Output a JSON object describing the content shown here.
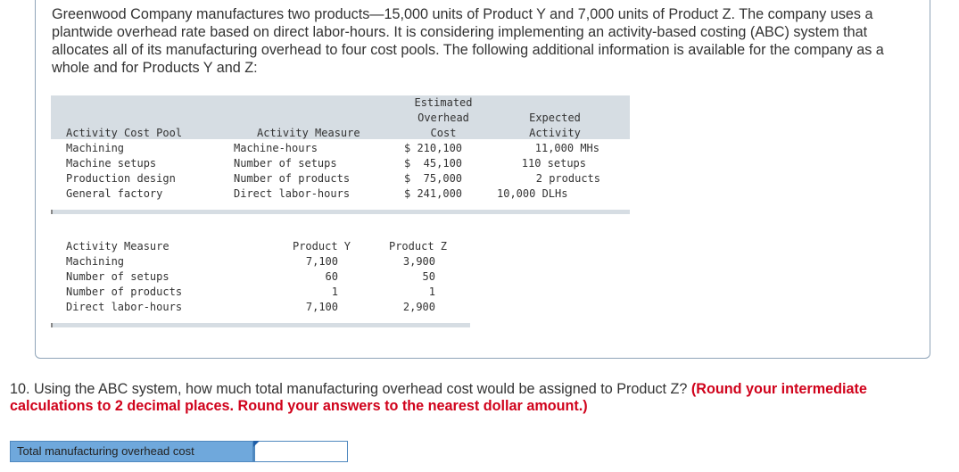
{
  "intro_text": "Greenwood Company manufactures two products—15,000 units of Product Y and 7,000 units of Product Z. The company uses a plantwide overhead rate based on direct labor-hours. It is considering implementing an activity-based costing (ABC) system that allocates all of its manufacturing overhead to four cost pools. The following additional information is available for the company as a whole and for Products Y and Z:",
  "table1": {
    "headers": {
      "pool": "Activity Cost Pool",
      "measure": "Activity Measure",
      "cost_line1": "Estimated",
      "cost_line2": "Overhead",
      "cost_line3": "Cost",
      "activity_line1": "Expected",
      "activity_line2": "Activity"
    },
    "rows": [
      {
        "pool": "Machining",
        "measure": "Machine-hours",
        "cost": "$ 210,100",
        "activity": "11,000 MHs"
      },
      {
        "pool": "Machine setups",
        "measure": "Number of setups",
        "cost": "$  45,100",
        "activity": "110 setups"
      },
      {
        "pool": "Production design",
        "measure": "Number of products",
        "cost": "$  75,000",
        "activity": "2 products"
      },
      {
        "pool": "General factory",
        "measure": "Direct labor-hours",
        "cost": "$ 241,000",
        "activity": "10,000 DLHs"
      }
    ]
  },
  "table2": {
    "headers": {
      "measure": "Activity Measure",
      "y": "Product Y",
      "z": "Product Z"
    },
    "rows": [
      {
        "measure": "Machining",
        "y": "7,100",
        "z": "3,900"
      },
      {
        "measure": "Number of setups",
        "y": "60",
        "z": "50"
      },
      {
        "measure": "Number of products",
        "y": "1",
        "z": "1"
      },
      {
        "measure": "Direct labor-hours",
        "y": "7,100",
        "z": "2,900"
      }
    ]
  },
  "question": {
    "text": "10. Using the ABC system, how much total manufacturing overhead cost would be assigned to Product Z? ",
    "hint": "(Round your intermediate calculations to 2 decimal places. Round your answers to the nearest dollar amount.)"
  },
  "answer": {
    "label": "Total manufacturing overhead cost",
    "value": ""
  }
}
